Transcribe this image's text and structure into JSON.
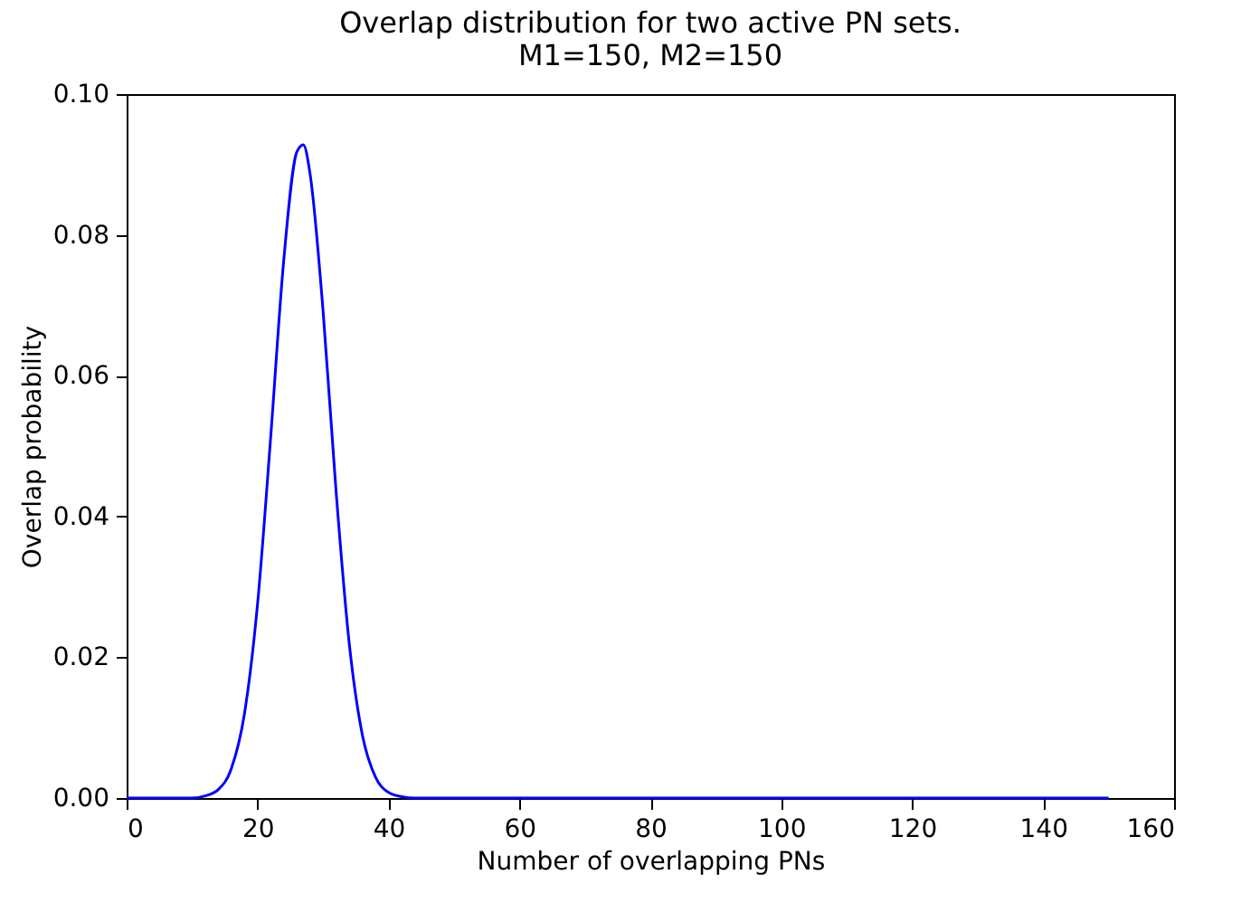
{
  "chart_data": {
    "type": "line",
    "title": "Overlap distribution for two active PN sets.",
    "subtitle": "M1=150, M2=150",
    "xlabel": "Number of overlapping PNs",
    "ylabel": "Overlap probability",
    "x": [
      0,
      10,
      12,
      14,
      16,
      18,
      20,
      22,
      24,
      26,
      27,
      28,
      30,
      32,
      34,
      36,
      38,
      40,
      42,
      44,
      50,
      150
    ],
    "series": [
      {
        "color": "#0000ff",
        "values": [
          0,
          0,
          0.0003,
          0.0012,
          0.0042,
          0.012,
          0.0276,
          0.0512,
          0.0764,
          0.0918,
          0.0928,
          0.0888,
          0.0693,
          0.0435,
          0.022,
          0.009,
          0.003,
          0.0008,
          0.0002,
          0,
          0,
          0
        ]
      }
    ],
    "xlim": [
      0,
      160
    ],
    "xticks": [
      0,
      20,
      40,
      60,
      80,
      100,
      120,
      140,
      160
    ],
    "ylim": [
      0,
      0.1
    ],
    "yticks": [
      {
        "value": 0,
        "label": "0.00"
      },
      0.02,
      0.04,
      0.06,
      0.08,
      {
        "value": 0.1,
        "label": "0.10"
      }
    ],
    "grid": false,
    "marker": "none",
    "line_style": "solid"
  }
}
